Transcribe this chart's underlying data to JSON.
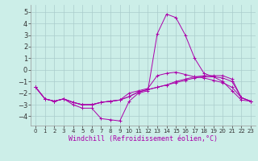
{
  "xlabel": "Windchill (Refroidissement éolien,°C)",
  "background_color": "#cceee8",
  "grid_color": "#aacccc",
  "line_color": "#aa00aa",
  "x_ticks": [
    0,
    1,
    2,
    3,
    4,
    5,
    6,
    7,
    8,
    9,
    10,
    11,
    12,
    13,
    14,
    15,
    16,
    17,
    18,
    19,
    20,
    21,
    22,
    23
  ],
  "y_ticks": [
    -4,
    -3,
    -2,
    -1,
    0,
    1,
    2,
    3,
    4,
    5
  ],
  "ylim": [
    -4.8,
    5.6
  ],
  "xlim": [
    -0.5,
    23.5
  ],
  "x": [
    0,
    1,
    2,
    3,
    4,
    5,
    6,
    7,
    8,
    9,
    10,
    11,
    12,
    13,
    14,
    15,
    16,
    17,
    18,
    19,
    20,
    21,
    22,
    23
  ],
  "series1": [
    -1.5,
    -2.5,
    -2.7,
    -2.5,
    -3.0,
    -3.3,
    -3.3,
    -4.2,
    -4.3,
    -4.4,
    -2.7,
    -2.0,
    -1.8,
    3.1,
    4.8,
    4.5,
    3.0,
    1.0,
    -0.3,
    -0.6,
    -1.0,
    -1.8,
    -2.6,
    -2.7
  ],
  "series2": [
    -1.5,
    -2.5,
    -2.7,
    -2.5,
    -2.8,
    -3.0,
    -3.0,
    -2.8,
    -2.7,
    -2.6,
    -2.0,
    -1.8,
    -1.6,
    -0.5,
    -0.3,
    -0.2,
    -0.4,
    -0.6,
    -0.7,
    -0.9,
    -1.1,
    -1.5,
    -2.4,
    -2.7
  ],
  "series3": [
    -1.5,
    -2.5,
    -2.7,
    -2.5,
    -2.8,
    -3.0,
    -3.0,
    -2.8,
    -2.7,
    -2.6,
    -2.3,
    -1.9,
    -1.7,
    -1.5,
    -1.3,
    -1.0,
    -0.8,
    -0.6,
    -0.5,
    -0.5,
    -0.5,
    -0.8,
    -2.4,
    -2.7
  ],
  "series4": [
    -1.5,
    -2.5,
    -2.7,
    -2.5,
    -2.8,
    -3.0,
    -3.0,
    -2.8,
    -2.7,
    -2.6,
    -2.3,
    -1.9,
    -1.7,
    -1.5,
    -1.3,
    -1.1,
    -0.9,
    -0.7,
    -0.6,
    -0.6,
    -0.7,
    -1.0,
    -2.4,
    -2.7
  ],
  "tick_fontsize": 6,
  "xlabel_fontsize": 6
}
